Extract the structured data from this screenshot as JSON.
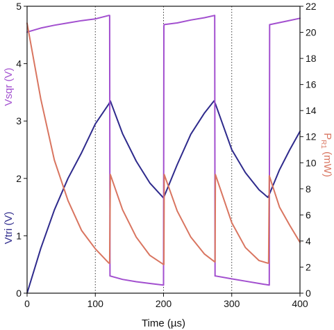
{
  "chart_data": {
    "type": "line",
    "xlabel": "Time (µs)",
    "xlim": [
      0,
      400
    ],
    "x_ticks": [
      "0",
      "100",
      "200",
      "300",
      "400"
    ],
    "x_tick_values": [
      0,
      100,
      200,
      300,
      400
    ],
    "vertical_gridlines_at": [
      100,
      200,
      300
    ],
    "grid": "dotted vertical lines at x = 100, 200, 300",
    "left_axis": {
      "label_top": "Vsqr (V)",
      "label_bottom": "Vtri (V)",
      "label_top_color": "#a24fcf",
      "label_bottom_color": "#2e2a8c",
      "ylim": [
        0,
        5
      ],
      "ticks": [
        "0",
        "1",
        "2",
        "3",
        "4",
        "5"
      ],
      "tick_values": [
        0,
        1,
        2,
        3,
        4,
        5
      ]
    },
    "right_axis": {
      "label_main": "P",
      "label_sub": "R1",
      "label_unit": " (mW)",
      "label_color": "#d97560",
      "ylim": [
        0,
        22
      ],
      "ticks": [
        "0",
        "2",
        "4",
        "6",
        "8",
        "10",
        "12",
        "14",
        "16",
        "18",
        "20",
        "22"
      ],
      "tick_values": [
        0,
        2,
        4,
        6,
        8,
        10,
        12,
        14,
        16,
        18,
        20,
        22
      ]
    },
    "series": [
      {
        "axis": "left",
        "color": "#2e2a8c",
        "x": [
          0,
          20,
          40,
          60,
          80,
          100,
          120,
          122,
          140,
          160,
          180,
          200,
          220,
          240,
          260,
          274,
          276,
          300,
          320,
          340,
          353,
          355,
          370,
          385,
          400
        ],
        "y": [
          0.0,
          0.78,
          1.45,
          2.0,
          2.45,
          2.95,
          3.3,
          3.35,
          2.78,
          2.3,
          1.92,
          1.66,
          2.24,
          2.77,
          3.14,
          3.35,
          3.3,
          2.5,
          2.1,
          1.8,
          1.67,
          1.72,
          2.15,
          2.5,
          2.82
        ]
      },
      {
        "axis": "left",
        "color": "#a24fcf",
        "x": [
          0,
          20,
          40,
          60,
          80,
          100,
          120,
          121,
          121.5,
          140,
          160,
          180,
          200,
          200.5,
          201,
          220,
          240,
          260,
          275,
          275.5,
          276,
          300,
          320,
          340,
          355,
          355.5,
          356,
          380,
          400
        ],
        "y": [
          4.55,
          4.62,
          4.67,
          4.71,
          4.75,
          4.78,
          4.84,
          4.84,
          0.3,
          0.24,
          0.2,
          0.17,
          0.14,
          4.66,
          4.68,
          4.71,
          4.76,
          4.8,
          4.84,
          0.3,
          0.3,
          0.25,
          0.21,
          0.17,
          0.14,
          4.68,
          4.68,
          4.74,
          4.79
        ]
      },
      {
        "axis": "right",
        "color": "#d97560",
        "x": [
          0,
          20,
          40,
          60,
          80,
          100,
          120,
          121,
          122,
          140,
          160,
          180,
          200,
          200.5,
          201,
          220,
          240,
          260,
          275,
          275.5,
          276,
          300,
          320,
          340,
          353,
          354,
          355,
          370,
          385,
          400
        ],
        "y": [
          20.7,
          14.9,
          10.2,
          7.1,
          4.8,
          3.4,
          2.3,
          2.3,
          9.1,
          6.4,
          4.3,
          2.9,
          2.2,
          2.2,
          9.1,
          6.3,
          4.3,
          3.0,
          2.4,
          2.4,
          9.1,
          5.4,
          3.5,
          2.5,
          2.3,
          2.3,
          9.0,
          6.6,
          5.2,
          3.9
        ]
      }
    ]
  }
}
